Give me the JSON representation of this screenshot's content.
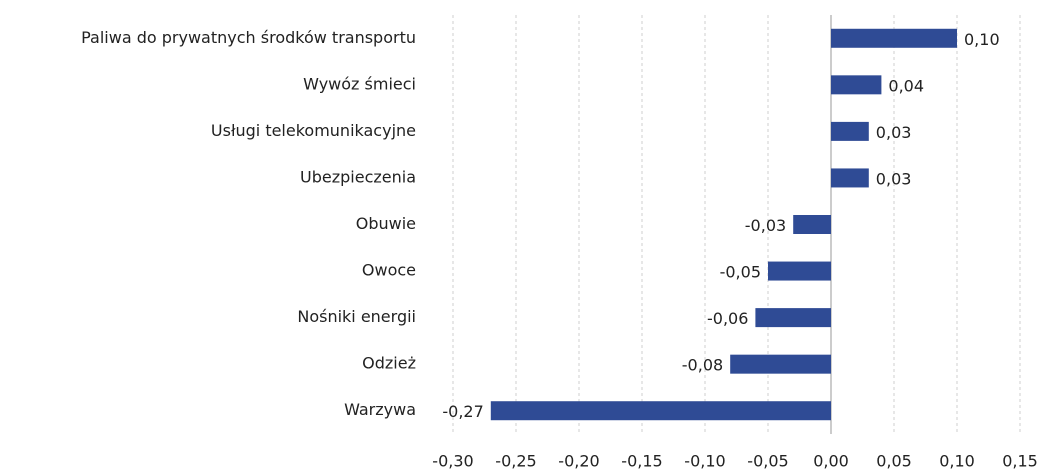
{
  "chart_data": {
    "type": "bar",
    "orientation": "horizontal",
    "categories": [
      "Paliwa do prywatnych środków transportu",
      "Wywóz śmieci",
      "Usługi telekomunikacyjne",
      "Ubezpieczenia",
      "Obuwie",
      "Owoce",
      "Nośniki energii",
      "Odzież",
      "Warzywa"
    ],
    "values": [
      0.1,
      0.04,
      0.03,
      0.03,
      -0.03,
      -0.05,
      -0.06,
      -0.08,
      -0.27
    ],
    "value_labels": [
      "0,10",
      "0,04",
      "0,03",
      "0,03",
      "-0,03",
      "-0,05",
      "-0,06",
      "-0,08",
      "-0,27"
    ],
    "color": "#2f4b95",
    "xlim": [
      -0.3,
      0.15
    ],
    "xticks": [
      {
        "value": -0.3,
        "label": "-0,30"
      },
      {
        "value": -0.25,
        "label": "-0,25"
      },
      {
        "value": -0.2,
        "label": "-0,20"
      },
      {
        "value": -0.15,
        "label": "-0,15"
      },
      {
        "value": -0.1,
        "label": "-0,10"
      },
      {
        "value": -0.05,
        "label": "-0,05"
      },
      {
        "value": 0,
        "label": "0,00"
      },
      {
        "value": 0.05,
        "label": "0,05"
      },
      {
        "value": 0.1,
        "label": "0,10"
      },
      {
        "value": 0.15,
        "label": "0,15"
      }
    ],
    "grid": true
  }
}
